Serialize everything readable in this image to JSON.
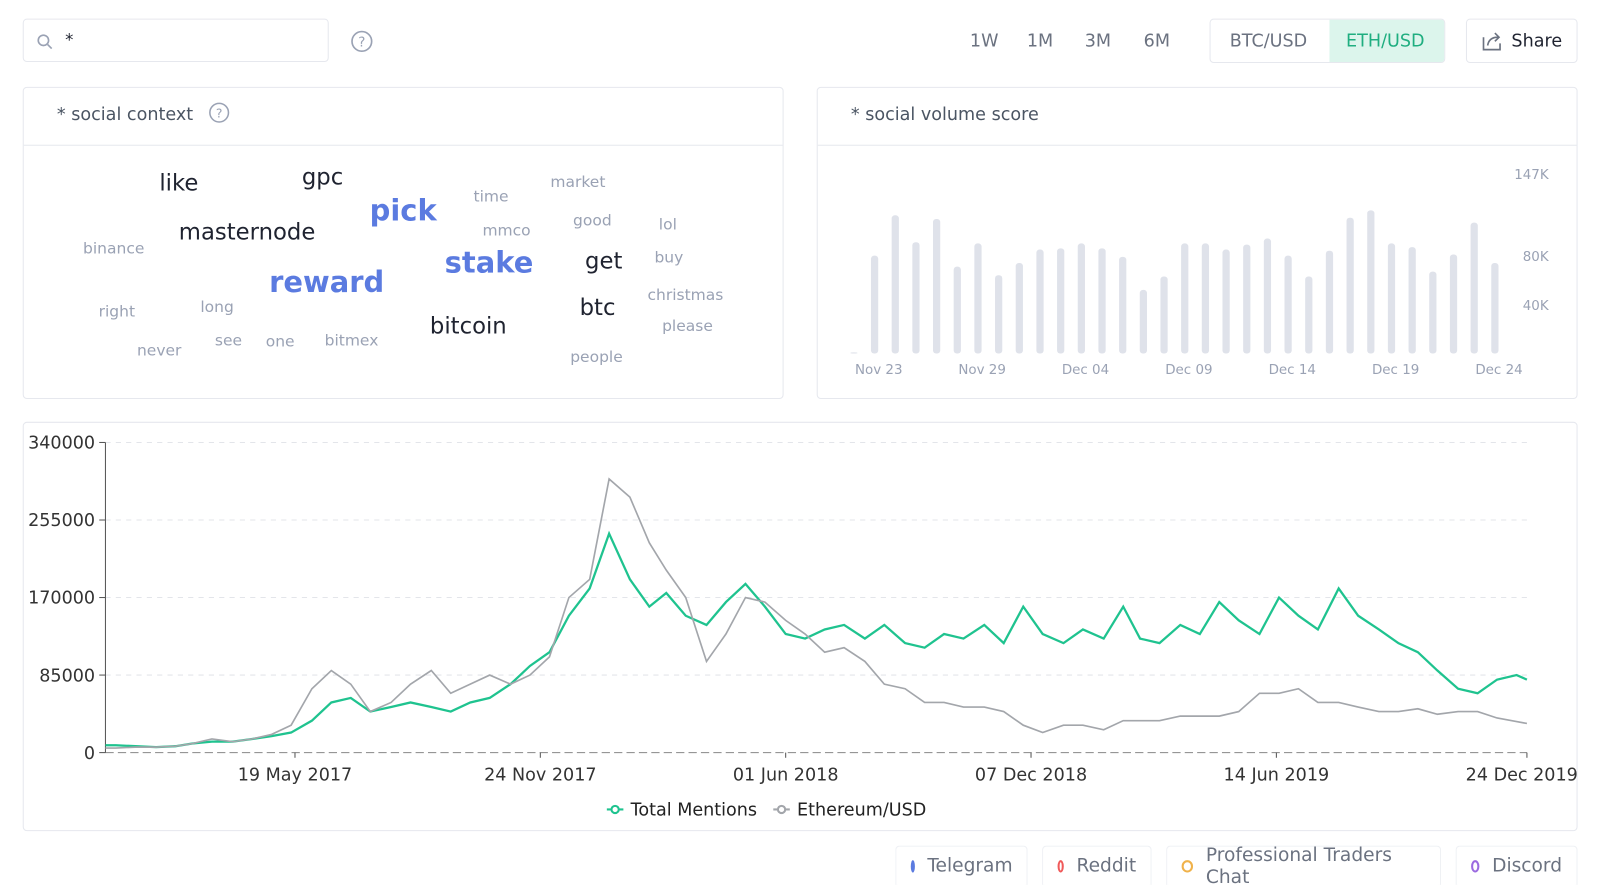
{
  "toolbar": {
    "search": "*",
    "ranges": [
      "1W",
      "1M",
      "3M",
      "6M"
    ],
    "pairs": [
      "BTC/USD",
      "ETH/USD"
    ],
    "share": "Share"
  },
  "word_cloud": {
    "title": "* social context",
    "words": [
      "like",
      "gpc",
      "pick",
      "time",
      "market",
      "masternode",
      "mmco",
      "good",
      "lol",
      "binance",
      "stake",
      "get",
      "buy",
      "reward",
      "christmas",
      "right",
      "long",
      "btc",
      "please",
      "bitcoin",
      "never",
      "see",
      "one",
      "bitmex",
      "people"
    ]
  },
  "chart_data": [
    {
      "type": "bar",
      "title": "* social volume score",
      "categories": [
        null,
        "Nov 23",
        null,
        null,
        null,
        null,
        "Nov 29",
        null,
        null,
        null,
        null,
        "Dec 04",
        null,
        null,
        null,
        null,
        "Dec 09",
        null,
        null,
        null,
        null,
        "Dec 14",
        null,
        null,
        null,
        null,
        "Dec 19",
        null,
        null,
        null,
        null,
        "Dec 24"
      ],
      "values": [
        1000,
        80000,
        113000,
        91000,
        110000,
        71000,
        90000,
        64000,
        74000,
        85000,
        86000,
        90000,
        86000,
        79000,
        52000,
        63000,
        90000,
        90000,
        85000,
        89000,
        94000,
        80000,
        63000,
        84000,
        111000,
        117000,
        90000,
        87000,
        67000,
        81000,
        107000,
        74000
      ],
      "color": "#dfe2ea",
      "ylim": [
        0,
        147000
      ],
      "yticks": [
        {
          "value": 40000,
          "label": "40K"
        },
        {
          "value": 80000,
          "label": "80K"
        },
        {
          "value": 147000,
          "label": "147K"
        }
      ]
    },
    {
      "type": "line",
      "x": [
        "2016-12-24",
        "2017-01-01",
        "2017-01-16",
        "2017-02-01",
        "2017-02-16",
        "2017-03-01",
        "2017-03-16",
        "2017-04-01",
        "2017-04-16",
        "2017-05-01",
        "2017-05-16",
        "2017-06-01",
        "2017-06-16",
        "2017-07-01",
        "2017-07-16",
        "2017-08-01",
        "2017-08-16",
        "2017-09-01",
        "2017-09-16",
        "2017-10-01",
        "2017-10-16",
        "2017-11-01",
        "2017-11-16",
        "2017-12-01",
        "2017-12-16",
        "2018-01-01",
        "2018-01-16",
        "2018-02-01",
        "2018-02-16",
        "2018-03-01",
        "2018-03-16",
        "2018-04-01",
        "2018-04-16",
        "2018-05-01",
        "2018-05-16",
        "2018-06-01",
        "2018-06-16",
        "2018-07-01",
        "2018-07-16",
        "2018-08-01",
        "2018-08-16",
        "2018-09-01",
        "2018-09-16",
        "2018-10-01",
        "2018-10-16",
        "2018-11-01",
        "2018-11-16",
        "2018-12-01",
        "2018-12-16",
        "2019-01-01",
        "2019-01-16",
        "2019-02-01",
        "2019-02-16",
        "2019-03-01",
        "2019-03-16",
        "2019-04-01",
        "2019-04-16",
        "2019-05-01",
        "2019-05-16",
        "2019-06-01",
        "2019-06-16",
        "2019-07-01",
        "2019-07-16",
        "2019-08-01",
        "2019-08-16",
        "2019-09-01",
        "2019-09-16",
        "2019-10-01",
        "2019-10-16",
        "2019-11-01",
        "2019-11-16",
        "2019-12-01",
        "2019-12-16",
        "2019-12-24"
      ],
      "series": [
        {
          "name": "Total Mentions",
          "color": "#1fc38f",
          "values": [
            8000,
            8000,
            7000,
            6000,
            7000,
            10000,
            12000,
            12000,
            15000,
            18000,
            22000,
            35000,
            55000,
            60000,
            45000,
            50000,
            55000,
            50000,
            45000,
            55000,
            60000,
            75000,
            95000,
            110000,
            150000,
            180000,
            240000,
            190000,
            160000,
            175000,
            150000,
            140000,
            165000,
            185000,
            160000,
            130000,
            125000,
            135000,
            140000,
            125000,
            140000,
            120000,
            115000,
            130000,
            125000,
            140000,
            120000,
            160000,
            130000,
            120000,
            135000,
            125000,
            160000,
            125000,
            120000,
            140000,
            130000,
            165000,
            145000,
            130000,
            170000,
            150000,
            135000,
            180000,
            150000,
            135000,
            120000,
            110000,
            90000,
            70000,
            65000,
            80000,
            85000,
            80000
          ]
        },
        {
          "name": "Ethereum/USD",
          "color": "#a3a6ab",
          "values": [
            5000,
            5000,
            6000,
            6000,
            7000,
            10000,
            15000,
            12000,
            15000,
            20000,
            30000,
            70000,
            90000,
            75000,
            45000,
            55000,
            75000,
            90000,
            65000,
            75000,
            85000,
            75000,
            85000,
            105000,
            170000,
            190000,
            300000,
            280000,
            230000,
            200000,
            170000,
            100000,
            130000,
            170000,
            165000,
            145000,
            130000,
            110000,
            115000,
            100000,
            75000,
            70000,
            55000,
            55000,
            50000,
            50000,
            45000,
            30000,
            22000,
            30000,
            30000,
            25000,
            35000,
            35000,
            35000,
            40000,
            40000,
            40000,
            45000,
            65000,
            65000,
            70000,
            55000,
            55000,
            50000,
            45000,
            45000,
            48000,
            42000,
            45000,
            45000,
            38000,
            34000,
            32000
          ]
        }
      ],
      "xlim": [
        "2016-12-24",
        "2019-12-24"
      ],
      "xticks": [
        {
          "value": "2017-05-19",
          "label": "19 May 2017"
        },
        {
          "value": "2017-11-24",
          "label": "24 Nov 2017"
        },
        {
          "value": "2018-06-01",
          "label": "01 Jun 2018"
        },
        {
          "value": "2018-12-07",
          "label": "07 Dec 2018"
        },
        {
          "value": "2019-06-14",
          "label": "14 Jun 2019"
        },
        {
          "value": "2019-12-24",
          "label": "24 Dec 2019"
        }
      ],
      "ylim": [
        0,
        340000
      ],
      "yticks": [
        0,
        85000,
        170000,
        255000,
        340000
      ],
      "grid": true
    }
  ],
  "channels": [
    "Telegram",
    "Reddit",
    "Professional Traders Chat",
    "Discord"
  ]
}
